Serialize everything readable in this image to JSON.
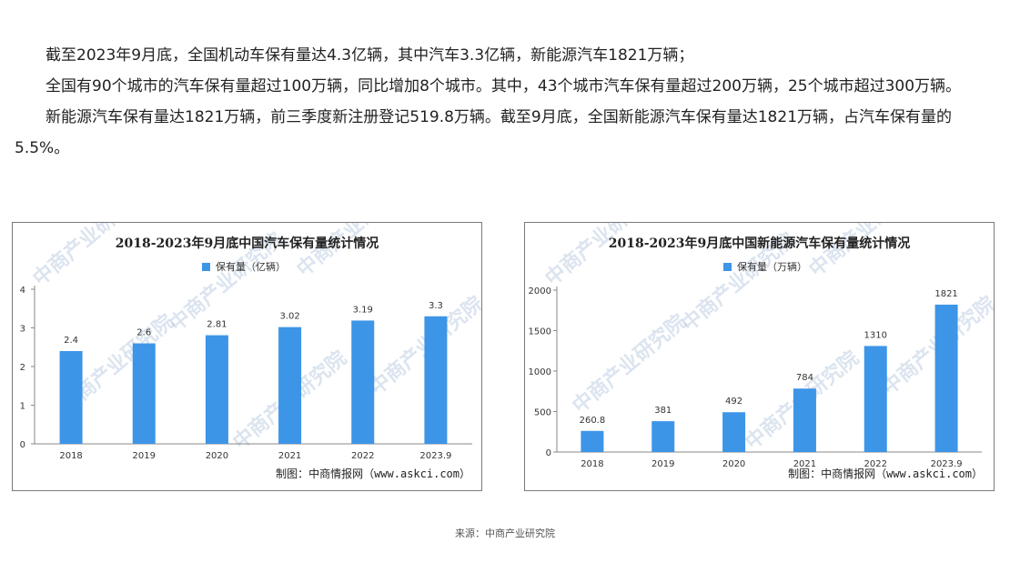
{
  "paragraphs": [
    "截至2023年9月底，全国机动车保有量达4.3亿辆，其中汽车3.3亿辆，新能源汽车1821万辆；",
    "全国有90个城市的汽车保有量超过100万辆，同比增加8个城市。其中，43个城市汽车保有量超过200万辆，25个城市超过300万辆。",
    "新能源汽车保有量达1821万辆，前三季度新注册登记519.8万辆。截至9月底，全国新能源汽车保有量达1821万辆，占汽车保有量的5.5%。"
  ],
  "watermark_text": "中商产业研究院",
  "source": "来源：中商产业研究院",
  "chart_data": [
    {
      "type": "bar",
      "title": "2018-2023年9月底中国汽车保有量统计情况",
      "legend": "保有量（亿辆）",
      "categories": [
        "2018",
        "2019",
        "2020",
        "2021",
        "2022",
        "2023.9"
      ],
      "values": [
        2.4,
        2.6,
        2.81,
        3.02,
        3.19,
        3.3
      ],
      "value_labels": [
        "2.4",
        "2.6",
        "2.81",
        "3.02",
        "3.19",
        "3.3"
      ],
      "ylim": [
        0,
        4
      ],
      "yticks": [
        "0",
        "1",
        "2",
        "3",
        "4"
      ],
      "ytick_values": [
        0,
        1,
        2,
        3,
        4
      ],
      "color": "#3d95e7",
      "credit": "制图：中商情报网（www.askci.com）",
      "legend_position": "top-center",
      "grid": false
    },
    {
      "type": "bar",
      "title": "2018-2023年9月底中国新能源汽车保有量统计情况",
      "legend": "保有量（万辆）",
      "categories": [
        "2018",
        "2019",
        "2020",
        "2021",
        "2022",
        "2023.9"
      ],
      "values": [
        260.8,
        381,
        492,
        784,
        1310,
        1821
      ],
      "value_labels": [
        "260.8",
        "381",
        "492",
        "784",
        "1310",
        "1821"
      ],
      "ylim": [
        0,
        2000
      ],
      "yticks": [
        "0",
        "500",
        "1000",
        "1500",
        "2000"
      ],
      "ytick_values": [
        0,
        500,
        1000,
        1500,
        2000
      ],
      "color": "#3d95e7",
      "credit": "制图：中商情报网（www.askci.com）",
      "legend_position": "top-center",
      "grid": false
    }
  ]
}
